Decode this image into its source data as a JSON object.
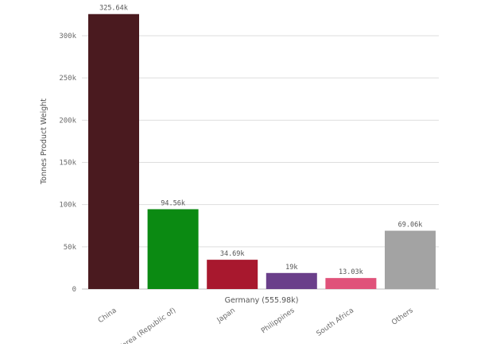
{
  "chart_data": {
    "type": "bar",
    "ylabel": "Tonnes Product Weight",
    "xlabel": "Germany (555.98k)",
    "categories": [
      "China",
      "Korea (Republic of)",
      "Japan",
      "Philippines",
      "South Africa",
      "Others"
    ],
    "values": [
      325.64,
      94.56,
      34.69,
      19,
      13.03,
      69.06
    ],
    "value_labels": [
      "325.64k",
      "94.56k",
      "34.69k",
      "19k",
      "13.03k",
      "69.06k"
    ],
    "colors": [
      "#4a1a1f",
      "#0b8a12",
      "#a8182e",
      "#6a3f8a",
      "#e0527a",
      "#a3a3a3"
    ],
    "yticks": [
      0,
      50,
      100,
      150,
      200,
      250,
      300
    ],
    "ytick_labels": [
      "0",
      "50k",
      "100k",
      "150k",
      "200k",
      "250k",
      "300k"
    ],
    "ylim": [
      0,
      330
    ],
    "grid": true,
    "legend": "none"
  }
}
